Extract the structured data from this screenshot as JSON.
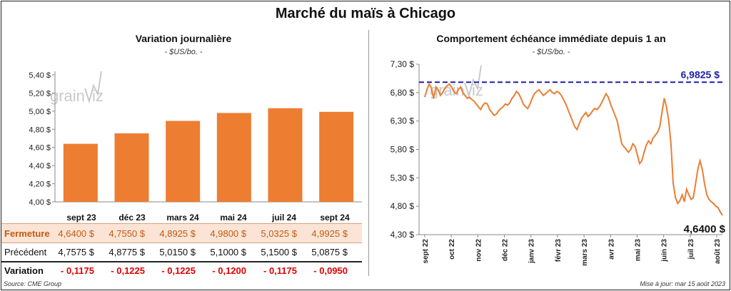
{
  "title": "Marché du maïs à Chicago",
  "left_panel": {
    "title": "Variation journalière",
    "unit": "- $US/bo. -"
  },
  "right_panel": {
    "title": "Comportement échéance immédiate depuis 1 an",
    "unit": "- $US/bo. -"
  },
  "watermark": "grainwiz",
  "table": {
    "labels": [
      "Fermeture",
      "Précédent",
      "Variation"
    ],
    "fermeture": [
      "4,6400 $",
      "4,7550 $",
      "4,8925 $",
      "4,9800 $",
      "5,0325 $",
      "4,9925 $"
    ],
    "precedent": [
      "4,7575 $",
      "4,8775 $",
      "5,0150 $",
      "5,1000 $",
      "5,1500 $",
      "5,0875 $"
    ],
    "variation": [
      "- 0,1175",
      "- 0,1225",
      "- 0,1225",
      "- 0,1200",
      "- 0,1175",
      "- 0,0950"
    ]
  },
  "source": "Source: CME Group",
  "updated": "Mise à jour: mar 15 août 2023",
  "colors": {
    "orange": "#ed7d31",
    "blue_dashed": "#1f1fa8",
    "fermeture_bg": "#fbe4d5",
    "variation_red": "#e00000"
  },
  "chart_data": [
    {
      "type": "bar",
      "title": "Variation journalière",
      "ylabel": "- $US/bo. -",
      "categories": [
        "sept 23",
        "déc 23",
        "mars 24",
        "mai 24",
        "juil 24",
        "sept 24"
      ],
      "values": [
        4.64,
        4.755,
        4.8925,
        4.98,
        5.0325,
        4.9925
      ],
      "ylim": [
        4.0,
        5.4
      ],
      "yticks": [
        "4,00 $",
        "4,20 $",
        "4,40 $",
        "4,60 $",
        "4,80 $",
        "5,00 $",
        "5,20 $",
        "5,40 $"
      ]
    },
    {
      "type": "line",
      "title": "Comportement échéance immédiate depuis 1 an",
      "ylabel": "- $US/bo. -",
      "ylim": [
        4.3,
        7.3
      ],
      "yticks": [
        "4,30 $",
        "4,80 $",
        "5,30 $",
        "5,80 $",
        "6,30 $",
        "6,80 $",
        "7,30 $"
      ],
      "xticks": [
        "sept 22",
        "oct 22",
        "nov 22",
        "déc 22",
        "janv 23",
        "févr 23",
        "mars 23",
        "avr 23",
        "mai 23",
        "juin 23",
        "juil 23",
        "août 23"
      ],
      "max_line": {
        "value": 6.9825,
        "label": "6,9825 $"
      },
      "last_label": "4,6400 $",
      "values": [
        6.72,
        6.85,
        6.95,
        6.88,
        6.7,
        6.9,
        6.85,
        6.75,
        6.8,
        6.88,
        6.92,
        6.95,
        6.9,
        6.82,
        6.78,
        6.85,
        6.9,
        6.8,
        6.75,
        6.7,
        6.72,
        6.68,
        6.65,
        6.6,
        6.55,
        6.5,
        6.58,
        6.62,
        6.6,
        6.5,
        6.45,
        6.4,
        6.42,
        6.48,
        6.52,
        6.55,
        6.6,
        6.58,
        6.62,
        6.7,
        6.75,
        6.82,
        6.78,
        6.7,
        6.6,
        6.55,
        6.52,
        6.6,
        6.7,
        6.78,
        6.82,
        6.85,
        6.8,
        6.75,
        6.78,
        6.82,
        6.85,
        6.8,
        6.78,
        6.82,
        6.8,
        6.75,
        6.68,
        6.6,
        6.5,
        6.4,
        6.3,
        6.2,
        6.15,
        6.25,
        6.35,
        6.4,
        6.45,
        6.38,
        6.42,
        6.48,
        6.52,
        6.5,
        6.55,
        6.62,
        6.7,
        6.78,
        6.72,
        6.6,
        6.5,
        6.4,
        6.3,
        6.1,
        5.9,
        5.85,
        5.8,
        5.75,
        5.8,
        5.9,
        5.85,
        5.7,
        5.55,
        5.6,
        5.75,
        5.88,
        5.95,
        5.9,
        6.0,
        6.05,
        6.1,
        6.2,
        6.45,
        6.7,
        6.55,
        6.3,
        5.9,
        5.2,
        4.95,
        4.85,
        4.9,
        5.0,
        4.88,
        5.1,
        5.0,
        4.92,
        4.95,
        5.2,
        5.45,
        5.6,
        5.45,
        5.2,
        5.0,
        4.92,
        4.88,
        4.85,
        4.8,
        4.78,
        4.7,
        4.64
      ]
    }
  ]
}
